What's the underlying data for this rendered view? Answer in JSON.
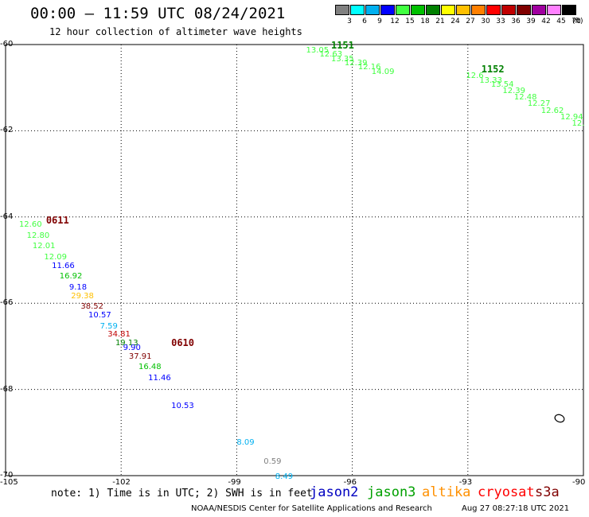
{
  "header": {
    "title": "00:00 – 11:59 UTC 08/24/2021",
    "subtitle": "12 hour collection of altimeter wave heights"
  },
  "legend": {
    "unit": "(ft)",
    "bins": [
      {
        "label": "3",
        "color": "#808080"
      },
      {
        "label": "6",
        "color": "#00ffff"
      },
      {
        "label": "9",
        "color": "#00b0f0"
      },
      {
        "label": "12",
        "color": "#0000ff"
      },
      {
        "label": "15",
        "color": "#40ff40"
      },
      {
        "label": "18",
        "color": "#00c000"
      },
      {
        "label": "21",
        "color": "#008000"
      },
      {
        "label": "24",
        "color": "#ffff00"
      },
      {
        "label": "27",
        "color": "#ffc000"
      },
      {
        "label": "30",
        "color": "#ff8000"
      },
      {
        "label": "33",
        "color": "#ff0000"
      },
      {
        "label": "36",
        "color": "#c00000"
      },
      {
        "label": "39",
        "color": "#800000"
      },
      {
        "label": "42",
        "color": "#a000a0"
      },
      {
        "label": "45",
        "color": "#ff80ff"
      },
      {
        "label": "70",
        "color": "#000000"
      }
    ]
  },
  "map": {
    "lon_ticks": [
      {
        "label": "-105",
        "lon": -105
      },
      {
        "label": "-102",
        "lon": -102
      },
      {
        "label": "-99",
        "lon": -99
      },
      {
        "label": "-96",
        "lon": -96
      },
      {
        "label": "-93",
        "lon": -93
      },
      {
        "label": "-90",
        "lon": -90
      }
    ],
    "lat_ticks": [
      {
        "label": "-60",
        "lat": -60
      },
      {
        "label": "-62",
        "lat": -62
      },
      {
        "label": "-64",
        "lat": -64
      },
      {
        "label": "-66",
        "lat": -66
      },
      {
        "label": "-68",
        "lat": -68
      },
      {
        "label": "-70",
        "lat": -70
      }
    ],
    "passes": [
      {
        "label": "1151",
        "color": "#008000",
        "lon": -96.55,
        "lat": -60.0
      },
      {
        "label": "1152",
        "color": "#008000",
        "lon": -92.65,
        "lat": -60.55
      },
      {
        "label": "0611",
        "color": "#800000",
        "lon": -103.95,
        "lat": -64.05
      },
      {
        "label": "0610",
        "color": "#800000",
        "lon": -100.7,
        "lat": -66.9
      }
    ],
    "points": [
      {
        "v": "13.05",
        "color": "#40ff40",
        "lon": -97.2,
        "lat": -60.05
      },
      {
        "v": "12.63",
        "color": "#40ff40",
        "lon": -96.85,
        "lat": -60.15
      },
      {
        "v": "13.35",
        "color": "#40ff40",
        "lon": -96.55,
        "lat": -60.25
      },
      {
        "v": "12.39",
        "color": "#40ff40",
        "lon": -96.2,
        "lat": -60.35
      },
      {
        "v": "12.16",
        "color": "#40ff40",
        "lon": -95.85,
        "lat": -60.45
      },
      {
        "v": "14.09",
        "color": "#40ff40",
        "lon": -95.5,
        "lat": -60.55
      },
      {
        "v": "12.6",
        "color": "#40ff40",
        "lon": -93.05,
        "lat": -60.65
      },
      {
        "v": "13.33",
        "color": "#40ff40",
        "lon": -92.7,
        "lat": -60.75
      },
      {
        "v": "13.54",
        "color": "#40ff40",
        "lon": -92.4,
        "lat": -60.85
      },
      {
        "v": "12.39",
        "color": "#40ff40",
        "lon": -92.1,
        "lat": -61.0
      },
      {
        "v": "12.48",
        "color": "#40ff40",
        "lon": -91.8,
        "lat": -61.15
      },
      {
        "v": "12.27",
        "color": "#40ff40",
        "lon": -91.45,
        "lat": -61.3
      },
      {
        "v": "12.62",
        "color": "#40ff40",
        "lon": -91.1,
        "lat": -61.45
      },
      {
        "v": "12.94",
        "color": "#40ff40",
        "lon": -90.6,
        "lat": -61.6
      },
      {
        "v": "12.",
        "color": "#40ff40",
        "lon": -90.3,
        "lat": -61.75
      },
      {
        "v": "12.60",
        "color": "#40ff40",
        "lon": -104.65,
        "lat": -64.1
      },
      {
        "v": "12.80",
        "color": "#40ff40",
        "lon": -104.45,
        "lat": -64.35
      },
      {
        "v": "12.01",
        "color": "#40ff40",
        "lon": -104.3,
        "lat": -64.6
      },
      {
        "v": "12.09",
        "color": "#40ff40",
        "lon": -104.0,
        "lat": -64.85
      },
      {
        "v": "11.66",
        "color": "#0000ff",
        "lon": -103.8,
        "lat": -65.05
      },
      {
        "v": "16.92",
        "color": "#00c000",
        "lon": -103.6,
        "lat": -65.3
      },
      {
        "v": "9.18",
        "color": "#0000ff",
        "lon": -103.35,
        "lat": -65.55
      },
      {
        "v": "29.38",
        "color": "#ffc000",
        "lon": -103.3,
        "lat": -65.75
      },
      {
        "v": "38.52",
        "color": "#800000",
        "lon": -103.05,
        "lat": -66.0
      },
      {
        "v": "10.57",
        "color": "#0000ff",
        "lon": -102.85,
        "lat": -66.2
      },
      {
        "v": "7.59",
        "color": "#00b0f0",
        "lon": -102.55,
        "lat": -66.45
      },
      {
        "v": "34.81",
        "color": "#c00000",
        "lon": -102.35,
        "lat": -66.65
      },
      {
        "v": "19.13",
        "color": "#008000",
        "lon": -102.15,
        "lat": -66.85
      },
      {
        "v": "9.90",
        "color": "#0000ff",
        "lon": -101.95,
        "lat": -66.95
      },
      {
        "v": "37.91",
        "color": "#800000",
        "lon": -101.8,
        "lat": -67.15
      },
      {
        "v": "16.48",
        "color": "#00c000",
        "lon": -101.55,
        "lat": -67.4
      },
      {
        "v": "11.46",
        "color": "#0000ff",
        "lon": -101.3,
        "lat": -67.65
      },
      {
        "v": "10.53",
        "color": "#0000ff",
        "lon": -100.7,
        "lat": -68.3
      },
      {
        "v": "8.09",
        "color": "#00b0f0",
        "lon": -99.0,
        "lat": -69.15
      },
      {
        "v": "0.59",
        "color": "#808080",
        "lon": -98.3,
        "lat": -69.6
      },
      {
        "v": "8.49",
        "color": "#00b0f0",
        "lon": -98.0,
        "lat": -69.95
      }
    ]
  },
  "note": "note: 1) Time is in UTC; 2) SWH is in feet",
  "satellites": [
    {
      "name": "jason2",
      "color": "#0000c0"
    },
    {
      "name": "jason3",
      "color": "#00a000"
    },
    {
      "name": "altika",
      "color": "#ff9000"
    },
    {
      "name": "cryosat",
      "color": "#ff0000"
    },
    {
      "name": "s3a",
      "color": "#800000"
    }
  ],
  "footer": {
    "credit": "NOAA/NESDIS Center for Satellite Applications and Research",
    "timestamp": "Aug 27 08:27:18 UTC 2021"
  }
}
